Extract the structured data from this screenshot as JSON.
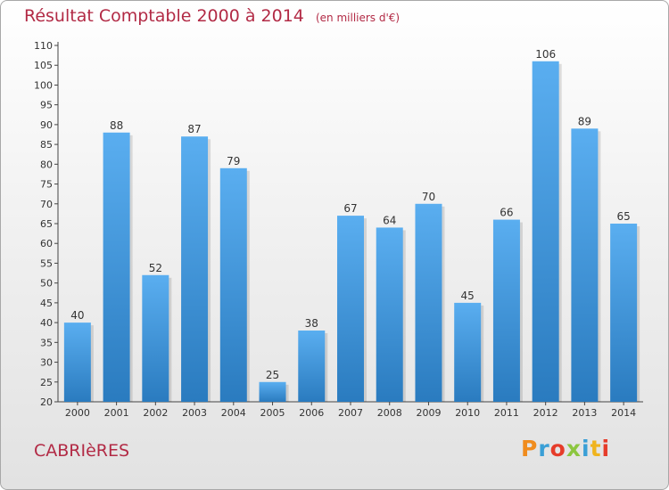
{
  "header": {
    "title": "Résultat Comptable 2000 à 2014",
    "subtitle": "(en milliers d'€)"
  },
  "footer": {
    "place": "CABRIèRES",
    "logo": {
      "text": "Proxiti",
      "letters": [
        {
          "char": "P",
          "color": "#f08c1e"
        },
        {
          "char": "r",
          "color": "#3a9fd6"
        },
        {
          "char": "o",
          "color": "#e63c2a"
        },
        {
          "char": "x",
          "color": "#8cc63f"
        },
        {
          "char": "i",
          "color": "#3a9fd6"
        },
        {
          "char": "t",
          "color": "#f0b41e"
        },
        {
          "char": "i",
          "color": "#e63c2a"
        }
      ]
    }
  },
  "colors": {
    "bar_top": "#5aaef0",
    "bar_bottom": "#2a7bbf",
    "title": "#b22a45"
  },
  "chart_data": {
    "type": "bar",
    "title": "Résultat Comptable 2000 à 2014",
    "subtitle": "(en milliers d'€)",
    "xlabel": "",
    "ylabel": "",
    "categories": [
      "2000",
      "2001",
      "2002",
      "2003",
      "2004",
      "2005",
      "2006",
      "2007",
      "2008",
      "2009",
      "2010",
      "2011",
      "2012",
      "2013",
      "2014"
    ],
    "values": [
      40,
      88,
      52,
      87,
      79,
      25,
      38,
      67,
      64,
      70,
      45,
      66,
      106,
      89,
      65
    ],
    "ylim": [
      20,
      110
    ],
    "yticks": [
      20,
      25,
      30,
      35,
      40,
      45,
      50,
      55,
      60,
      65,
      70,
      75,
      80,
      85,
      90,
      95,
      100,
      105,
      110
    ],
    "grid": false,
    "legend": "none"
  }
}
